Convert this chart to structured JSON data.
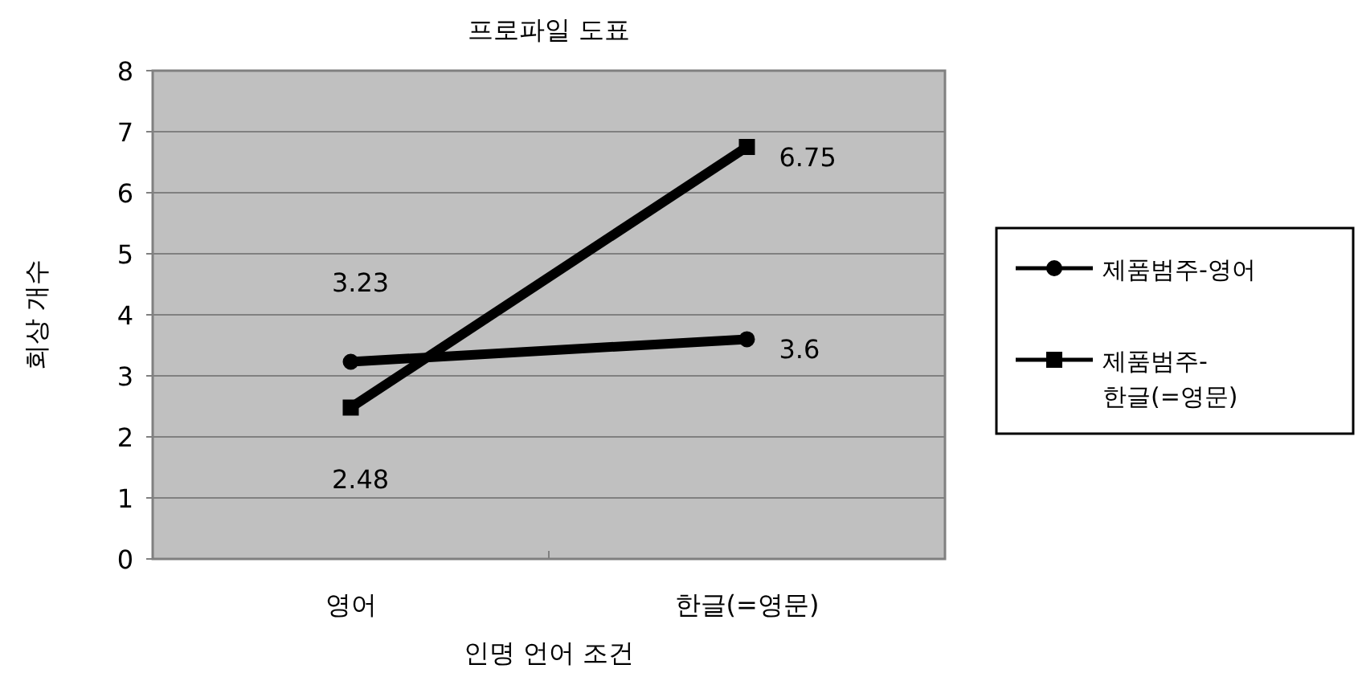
{
  "chart_data": {
    "type": "line",
    "title": "프로파일 도표",
    "xlabel": "인명 언어 조건",
    "ylabel": "회상 개수",
    "categories": [
      "영어",
      "한글(=영문)"
    ],
    "series": [
      {
        "name": "제품범주-영어",
        "color": "#000000",
        "marker": "circle",
        "values": [
          3.23,
          3.6
        ]
      },
      {
        "name": "제품범주-한글(=영문)",
        "color": "#000000",
        "marker": "square",
        "values": [
          2.48,
          6.75
        ]
      }
    ],
    "ylim": [
      0,
      8
    ],
    "yticks": [
      0,
      1,
      2,
      3,
      4,
      5,
      6,
      7,
      8
    ],
    "grid": "y",
    "legend": "right",
    "data_labels": true
  }
}
